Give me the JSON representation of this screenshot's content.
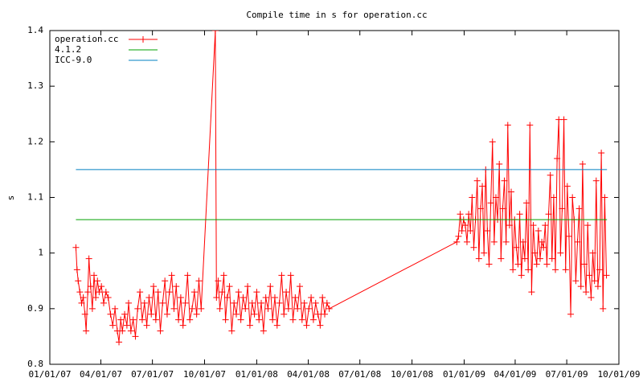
{
  "chart_data": {
    "type": "line",
    "title": "Compile time in s for operation.cc",
    "ylabel": "s",
    "legend": "top-left",
    "grid": false,
    "xlim": [
      "2007-01-01",
      "2009-10-01"
    ],
    "xticks": [
      {
        "value": "2007-01-01",
        "label": "01/01/07"
      },
      {
        "value": "2007-04-01",
        "label": "04/01/07"
      },
      {
        "value": "2007-07-01",
        "label": "07/01/07"
      },
      {
        "value": "2007-10-01",
        "label": "10/01/07"
      },
      {
        "value": "2008-01-01",
        "label": "01/01/08"
      },
      {
        "value": "2008-04-01",
        "label": "04/01/08"
      },
      {
        "value": "2008-07-01",
        "label": "07/01/08"
      },
      {
        "value": "2008-10-01",
        "label": "10/01/08"
      },
      {
        "value": "2009-01-01",
        "label": "01/01/09"
      },
      {
        "value": "2009-04-01",
        "label": "04/01/09"
      },
      {
        "value": "2009-07-01",
        "label": "07/01/09"
      },
      {
        "value": "2009-10-01",
        "label": "10/01/09"
      }
    ],
    "ylim": [
      0.8,
      1.4
    ],
    "yticks": [
      0.8,
      0.9,
      1,
      1.1,
      1.2,
      1.3,
      1.4
    ],
    "series": [
      {
        "name": "operation.cc",
        "color": "#ff0000",
        "marker": "+",
        "x": [
          "2007-02-16",
          "2007-02-18",
          "2007-02-20",
          "2007-02-23",
          "2007-02-26",
          "2007-03-01",
          "2007-03-04",
          "2007-03-06",
          "2007-03-09",
          "2007-03-11",
          "2007-03-14",
          "2007-03-17",
          "2007-03-20",
          "2007-03-23",
          "2007-03-26",
          "2007-03-29",
          "2007-04-02",
          "2007-04-06",
          "2007-04-10",
          "2007-04-14",
          "2007-04-18",
          "2007-04-22",
          "2007-04-26",
          "2007-04-30",
          "2007-05-03",
          "2007-05-06",
          "2007-05-09",
          "2007-05-13",
          "2007-05-17",
          "2007-05-20",
          "2007-05-24",
          "2007-05-28",
          "2007-06-01",
          "2007-06-05",
          "2007-06-09",
          "2007-06-13",
          "2007-06-17",
          "2007-06-21",
          "2007-06-25",
          "2007-06-29",
          "2007-07-03",
          "2007-07-07",
          "2007-07-11",
          "2007-07-15",
          "2007-07-19",
          "2007-07-23",
          "2007-07-27",
          "2007-07-31",
          "2007-08-04",
          "2007-08-08",
          "2007-08-12",
          "2007-08-16",
          "2007-08-20",
          "2007-08-24",
          "2007-08-28",
          "2007-09-01",
          "2007-09-05",
          "2007-09-09",
          "2007-09-13",
          "2007-09-17",
          "2007-09-21",
          "2007-09-25",
          "2007-10-20",
          "2007-10-22",
          "2007-10-25",
          "2007-10-28",
          "2007-11-01",
          "2007-11-04",
          "2007-11-07",
          "2007-11-10",
          "2007-11-14",
          "2007-11-18",
          "2007-11-22",
          "2007-11-26",
          "2007-11-30",
          "2007-12-04",
          "2007-12-08",
          "2007-12-12",
          "2007-12-16",
          "2007-12-20",
          "2007-12-24",
          "2007-12-28",
          "2008-01-01",
          "2008-01-05",
          "2008-01-09",
          "2008-01-13",
          "2008-01-17",
          "2008-01-21",
          "2008-01-25",
          "2008-01-29",
          "2008-02-02",
          "2008-02-06",
          "2008-02-10",
          "2008-02-14",
          "2008-02-18",
          "2008-02-22",
          "2008-02-26",
          "2008-03-01",
          "2008-03-05",
          "2008-03-09",
          "2008-03-13",
          "2008-03-17",
          "2008-03-21",
          "2008-03-25",
          "2008-03-29",
          "2008-04-02",
          "2008-04-06",
          "2008-04-10",
          "2008-04-14",
          "2008-04-18",
          "2008-04-22",
          "2008-04-26",
          "2008-04-30",
          "2008-05-04",
          "2008-05-08",
          "2008-12-19",
          "2008-12-22",
          "2008-12-25",
          "2008-12-28",
          "2008-12-31",
          "2009-01-03",
          "2009-01-06",
          "2009-01-09",
          "2009-01-12",
          "2009-01-15",
          "2009-01-18",
          "2009-01-21",
          "2009-01-24",
          "2009-01-27",
          "2009-01-30",
          "2009-02-02",
          "2009-02-05",
          "2009-02-08",
          "2009-02-11",
          "2009-02-14",
          "2009-02-17",
          "2009-02-20",
          "2009-02-23",
          "2009-02-26",
          "2009-03-01",
          "2009-03-04",
          "2009-03-07",
          "2009-03-10",
          "2009-03-13",
          "2009-03-16",
          "2009-03-19",
          "2009-03-22",
          "2009-03-25",
          "2009-03-28",
          "2009-03-31",
          "2009-04-03",
          "2009-04-06",
          "2009-04-09",
          "2009-04-12",
          "2009-04-15",
          "2009-04-18",
          "2009-04-21",
          "2009-04-24",
          "2009-04-27",
          "2009-04-30",
          "2009-05-03",
          "2009-05-06",
          "2009-05-09",
          "2009-05-12",
          "2009-05-15",
          "2009-05-18",
          "2009-05-21",
          "2009-05-24",
          "2009-05-27",
          "2009-05-30",
          "2009-06-02",
          "2009-06-05",
          "2009-06-08",
          "2009-06-11",
          "2009-06-14",
          "2009-06-17",
          "2009-06-20",
          "2009-06-23",
          "2009-06-26",
          "2009-06-29",
          "2009-07-02",
          "2009-07-05",
          "2009-07-08",
          "2009-07-11",
          "2009-07-14",
          "2009-07-17",
          "2009-07-20",
          "2009-07-23",
          "2009-07-26",
          "2009-07-29",
          "2009-08-01",
          "2009-08-04",
          "2009-08-07",
          "2009-08-10",
          "2009-08-13",
          "2009-08-16",
          "2009-08-19",
          "2009-08-22",
          "2009-08-25",
          "2009-08-28",
          "2009-08-31",
          "2009-09-03",
          "2009-09-06",
          "2009-09-09"
        ],
        "values": [
          1.01,
          0.97,
          0.95,
          0.93,
          0.91,
          0.92,
          0.89,
          0.86,
          0.93,
          0.99,
          0.94,
          0.9,
          0.96,
          0.92,
          0.95,
          0.93,
          0.94,
          0.91,
          0.93,
          0.92,
          0.89,
          0.87,
          0.9,
          0.86,
          0.84,
          0.88,
          0.86,
          0.89,
          0.87,
          0.91,
          0.86,
          0.88,
          0.85,
          0.9,
          0.93,
          0.88,
          0.91,
          0.87,
          0.92,
          0.89,
          0.94,
          0.88,
          0.93,
          0.86,
          0.91,
          0.95,
          0.89,
          0.93,
          0.96,
          0.9,
          0.94,
          0.88,
          0.92,
          0.87,
          0.91,
          0.96,
          0.88,
          0.9,
          0.93,
          0.89,
          0.95,
          0.9,
          1.4,
          0.92,
          0.95,
          0.9,
          0.93,
          0.96,
          0.88,
          0.92,
          0.94,
          0.86,
          0.91,
          0.89,
          0.93,
          0.88,
          0.92,
          0.9,
          0.94,
          0.87,
          0.91,
          0.89,
          0.93,
          0.88,
          0.91,
          0.86,
          0.92,
          0.9,
          0.94,
          0.88,
          0.92,
          0.87,
          0.91,
          0.96,
          0.89,
          0.93,
          0.9,
          0.96,
          0.88,
          0.92,
          0.9,
          0.94,
          0.88,
          0.91,
          0.87,
          0.9,
          0.92,
          0.88,
          0.91,
          0.89,
          0.87,
          0.92,
          0.89,
          0.91,
          0.9,
          1.02,
          1.03,
          1.07,
          1.04,
          1.06,
          1.05,
          1.02,
          1.07,
          1.04,
          1.1,
          1.01,
          1.06,
          1.13,
          0.99,
          1.08,
          1.12,
          1.0,
          1.15,
          1.04,
          0.98,
          1.09,
          1.2,
          1.02,
          1.1,
          1.06,
          1.16,
          0.99,
          1.08,
          1.13,
          1.02,
          1.23,
          1.05,
          1.11,
          0.97,
          1.06,
          1.01,
          0.98,
          1.07,
          0.96,
          1.02,
          0.99,
          1.09,
          0.97,
          1.23,
          0.93,
          1.05,
          1.0,
          0.98,
          1.04,
          0.99,
          1.02,
          1.01,
          1.05,
          0.98,
          1.07,
          1.14,
          0.99,
          1.1,
          0.97,
          1.17,
          1.24,
          1.0,
          1.08,
          1.24,
          0.97,
          1.12,
          1.03,
          0.89,
          1.1,
          1.06,
          0.95,
          1.02,
          1.08,
          0.94,
          1.16,
          0.98,
          0.93,
          1.05,
          0.96,
          0.92,
          1.0,
          0.95,
          1.13,
          0.94,
          0.97,
          1.18,
          0.9,
          1.1,
          0.96
        ]
      },
      {
        "name": "4.1.2",
        "color": "#00a000",
        "x": [
          "2007-02-16",
          "2009-09-10"
        ],
        "values": [
          1.06,
          1.06
        ]
      },
      {
        "name": "ICC-9.0",
        "color": "#0080c0",
        "x": [
          "2007-02-16",
          "2009-09-10"
        ],
        "values": [
          1.15,
          1.15
        ]
      }
    ]
  }
}
